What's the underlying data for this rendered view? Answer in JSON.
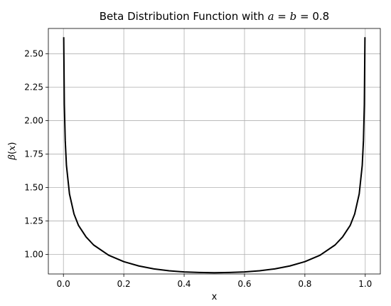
{
  "chart_data": {
    "type": "line",
    "title": {
      "prefix": "Beta Distribution Function with ",
      "var_a": "a",
      "eq1": " = ",
      "var_b": "b",
      "eq2": " = 0.8"
    },
    "xlabel": "x",
    "ylabel": {
      "func": "β",
      "open": "(",
      "var": "x",
      "close": ")"
    },
    "parameters": {
      "a": 0.8,
      "b": 0.8
    },
    "xlim": [
      -0.05,
      1.05
    ],
    "ylim": [
      0.853,
      2.69
    ],
    "x_ticks": [
      {
        "value": 0.0,
        "label": "0.0"
      },
      {
        "value": 0.2,
        "label": "0.2"
      },
      {
        "value": 0.4,
        "label": "0.4"
      },
      {
        "value": 0.6,
        "label": "0.6"
      },
      {
        "value": 0.8,
        "label": "0.8"
      },
      {
        "value": 1.0,
        "label": "1.0"
      }
    ],
    "y_ticks": [
      {
        "value": 1.0,
        "label": "1.00"
      },
      {
        "value": 1.25,
        "label": "1.25"
      },
      {
        "value": 1.5,
        "label": "1.50"
      },
      {
        "value": 1.75,
        "label": "1.75"
      },
      {
        "value": 2.0,
        "label": "2.00"
      },
      {
        "value": 2.25,
        "label": "2.25"
      },
      {
        "value": 2.5,
        "label": "2.50"
      }
    ],
    "grid": true,
    "series": [
      {
        "color": "#000000",
        "x": [
          0.001,
          0.003,
          0.006,
          0.01,
          0.02,
          0.035,
          0.05,
          0.075,
          0.1,
          0.15,
          0.2,
          0.25,
          0.3,
          0.35,
          0.4,
          0.45,
          0.5,
          0.55,
          0.6,
          0.65,
          0.7,
          0.75,
          0.8,
          0.85,
          0.9,
          0.925,
          0.95,
          0.965,
          0.98,
          0.99,
          0.994,
          0.997,
          0.999
        ],
        "y": [
          2.625,
          2.122,
          1.849,
          1.665,
          1.452,
          1.302,
          1.216,
          1.13,
          1.07,
          0.993,
          0.945,
          0.913,
          0.891,
          0.877,
          0.868,
          0.864,
          0.862,
          0.864,
          0.868,
          0.877,
          0.891,
          0.913,
          0.945,
          0.993,
          1.07,
          1.13,
          1.216,
          1.302,
          1.452,
          1.665,
          1.849,
          2.122,
          2.625
        ]
      }
    ]
  }
}
